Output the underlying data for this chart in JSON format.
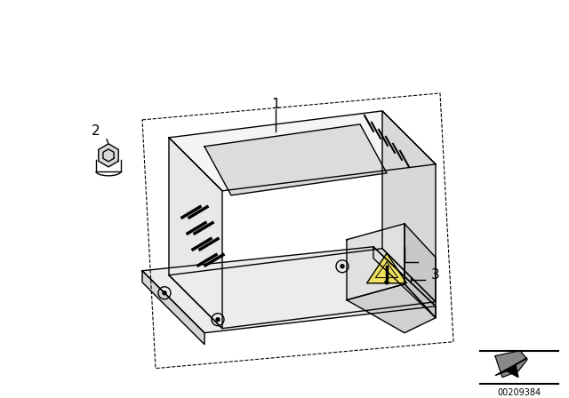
{
  "bg_color": "#ffffff",
  "fig_width": 6.4,
  "fig_height": 4.48,
  "dpi": 100,
  "label_1": "1",
  "label_2": "2",
  "label_3": "3",
  "part_number": "00209384",
  "line_color": "#000000",
  "line_width": 1.0,
  "label_fontsize": 11
}
